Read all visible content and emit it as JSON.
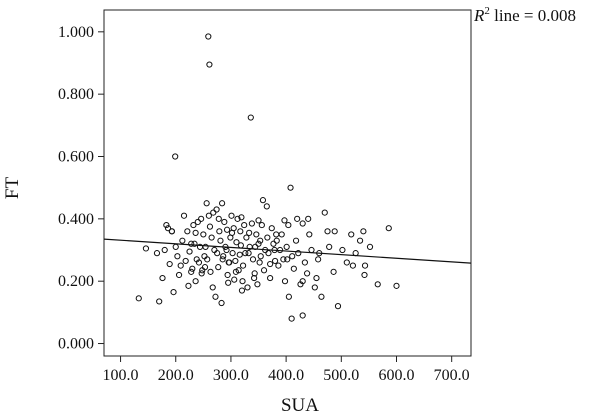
{
  "chart_data": {
    "type": "scatter",
    "title": "",
    "xlabel": "SUA",
    "ylabel": "FT",
    "xlim": [
      70,
      735
    ],
    "ylim": [
      -0.04,
      1.07
    ],
    "xticks": [
      100,
      200,
      300,
      400,
      500,
      600,
      700
    ],
    "xtick_labels": [
      "100.0",
      "200.0",
      "300.0",
      "400.0",
      "500.0",
      "600.0",
      "700.0"
    ],
    "yticks": [
      0,
      0.2,
      0.4,
      0.6,
      0.8,
      1.0
    ],
    "ytick_labels": [
      "0.000",
      "0.200",
      "0.400",
      "0.600",
      "0.800",
      "1.000"
    ],
    "grid": false,
    "annotation": {
      "r_symbol": "R",
      "r_exponent": "2",
      "text": " line = 0.008"
    },
    "fit_line": {
      "x": [
        70,
        735
      ],
      "y": [
        0.335,
        0.258
      ]
    },
    "series": [
      {
        "points": [
          [
            133,
            0.145
          ],
          [
            146,
            0.305
          ],
          [
            166,
            0.29
          ],
          [
            170,
            0.135
          ],
          [
            176,
            0.21
          ],
          [
            180,
            0.3
          ],
          [
            183,
            0.38
          ],
          [
            186,
            0.37
          ],
          [
            189,
            0.255
          ],
          [
            193,
            0.36
          ],
          [
            196,
            0.165
          ],
          [
            200,
            0.31
          ],
          [
            203,
            0.28
          ],
          [
            206,
            0.22
          ],
          [
            209,
            0.25
          ],
          [
            212,
            0.33
          ],
          [
            215,
            0.41
          ],
          [
            218,
            0.265
          ],
          [
            221,
            0.36
          ],
          [
            223,
            0.185
          ],
          [
            225,
            0.295
          ],
          [
            228,
            0.23
          ],
          [
            230,
            0.24
          ],
          [
            232,
            0.38
          ],
          [
            234,
            0.32
          ],
          [
            236,
            0.2
          ],
          [
            238,
            0.27
          ],
          [
            240,
            0.39
          ],
          [
            242,
            0.26
          ],
          [
            244,
            0.31
          ],
          [
            246,
            0.4
          ],
          [
            248,
            0.235
          ],
          [
            250,
            0.35
          ],
          [
            252,
            0.28
          ],
          [
            254,
            0.31
          ],
          [
            256,
            0.45
          ],
          [
            257,
            0.27
          ],
          [
            259,
            0.985
          ],
          [
            261,
            0.895
          ],
          [
            263,
            0.23
          ],
          [
            265,
            0.34
          ],
          [
            267,
            0.18
          ],
          [
            268,
            0.42
          ],
          [
            270,
            0.3
          ],
          [
            272,
            0.15
          ],
          [
            274,
            0.43
          ],
          [
            275,
            0.29
          ],
          [
            277,
            0.245
          ],
          [
            279,
            0.36
          ],
          [
            281,
            0.33
          ],
          [
            283,
            0.13
          ],
          [
            284,
            0.45
          ],
          [
            286,
            0.28
          ],
          [
            288,
            0.39
          ],
          [
            290,
            0.31
          ],
          [
            292,
            0.3
          ],
          [
            294,
            0.22
          ],
          [
            295,
            0.195
          ],
          [
            297,
            0.26
          ],
          [
            299,
            0.34
          ],
          [
            301,
            0.41
          ],
          [
            303,
            0.29
          ],
          [
            305,
            0.37
          ],
          [
            306,
            0.205
          ],
          [
            308,
            0.265
          ],
          [
            310,
            0.325
          ],
          [
            312,
            0.4
          ],
          [
            314,
            0.235
          ],
          [
            316,
            0.285
          ],
          [
            318,
            0.315
          ],
          [
            320,
            0.17
          ],
          [
            322,
            0.25
          ],
          [
            324,
            0.38
          ],
          [
            326,
            0.29
          ],
          [
            328,
            0.34
          ],
          [
            330,
            0.18
          ],
          [
            332,
            0.29
          ],
          [
            334,
            0.31
          ],
          [
            336,
            0.725
          ],
          [
            338,
            0.385
          ],
          [
            340,
            0.27
          ],
          [
            342,
            0.21
          ],
          [
            344,
            0.31
          ],
          [
            346,
            0.35
          ],
          [
            348,
            0.19
          ],
          [
            350,
            0.32
          ],
          [
            352,
            0.26
          ],
          [
            354,
            0.28
          ],
          [
            356,
            0.38
          ],
          [
            358,
            0.46
          ],
          [
            360,
            0.235
          ],
          [
            362,
            0.3
          ],
          [
            365,
            0.44
          ],
          [
            368,
            0.29
          ],
          [
            371,
            0.21
          ],
          [
            374,
            0.37
          ],
          [
            377,
            0.32
          ],
          [
            380,
            0.265
          ],
          [
            383,
            0.33
          ],
          [
            386,
            0.25
          ],
          [
            389,
            0.3
          ],
          [
            392,
            0.35
          ],
          [
            395,
            0.27
          ],
          [
            398,
            0.2
          ],
          [
            401,
            0.31
          ],
          [
            404,
            0.38
          ],
          [
            408,
            0.5
          ],
          [
            411,
            0.28
          ],
          [
            414,
            0.24
          ],
          [
            418,
            0.33
          ],
          [
            422,
            0.29
          ],
          [
            426,
            0.19
          ],
          [
            430,
            0.385
          ],
          [
            434,
            0.26
          ],
          [
            438,
            0.225
          ],
          [
            442,
            0.35
          ],
          [
            446,
            0.3
          ],
          [
            452,
            0.18
          ],
          [
            458,
            0.27
          ],
          [
            464,
            0.15
          ],
          [
            470,
            0.42
          ],
          [
            478,
            0.31
          ],
          [
            486,
            0.23
          ],
          [
            494,
            0.12
          ],
          [
            502,
            0.3
          ],
          [
            510,
            0.26
          ],
          [
            518,
            0.35
          ],
          [
            526,
            0.29
          ],
          [
            534,
            0.33
          ],
          [
            542,
            0.22
          ],
          [
            552,
            0.31
          ],
          [
            566,
            0.19
          ],
          [
            586,
            0.37
          ],
          [
            600,
            0.185
          ],
          [
            199,
            0.6
          ],
          [
            193,
            0.36
          ],
          [
            260,
            0.41
          ],
          [
            302,
            0.355
          ],
          [
            319,
            0.405
          ],
          [
            350,
            0.395
          ],
          [
            366,
            0.34
          ],
          [
            405,
            0.15
          ],
          [
            410,
            0.08
          ],
          [
            430,
            0.09
          ],
          [
            440,
            0.4
          ],
          [
            475,
            0.36
          ],
          [
            488,
            0.36
          ],
          [
            540,
            0.36
          ],
          [
            521,
            0.25
          ],
          [
            543,
            0.25
          ],
          [
            253,
            0.245
          ],
          [
            247,
            0.225
          ],
          [
            285,
            0.27
          ],
          [
            296,
            0.26
          ],
          [
            309,
            0.23
          ],
          [
            321,
            0.2
          ],
          [
            343,
            0.225
          ],
          [
            371,
            0.255
          ],
          [
            382,
            0.35
          ],
          [
            397,
            0.395
          ],
          [
            420,
            0.4
          ],
          [
            228,
            0.32
          ],
          [
            236,
            0.355
          ],
          [
            262,
            0.375
          ],
          [
            278,
            0.4
          ],
          [
            293,
            0.365
          ],
          [
            317,
            0.36
          ],
          [
            333,
            0.355
          ],
          [
            353,
            0.33
          ],
          [
            379,
            0.3
          ],
          [
            402,
            0.27
          ],
          [
            430,
            0.2
          ],
          [
            455,
            0.21
          ],
          [
            460,
            0.29
          ]
        ]
      }
    ]
  }
}
